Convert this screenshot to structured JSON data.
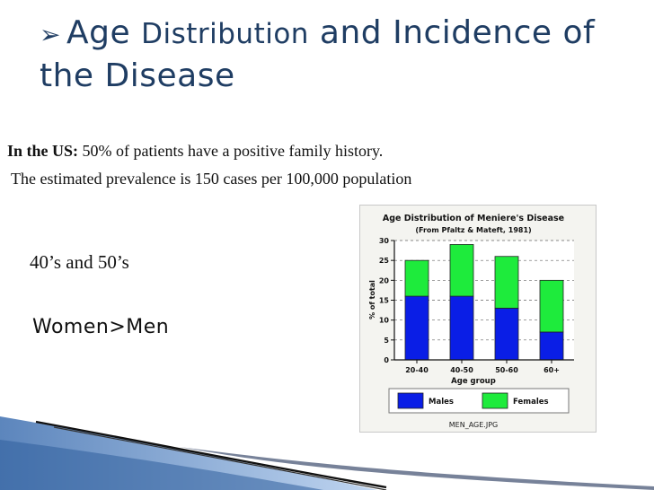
{
  "slide": {
    "title_bullet": "➢",
    "title_part1": "Age",
    "title_part2": "Distribution",
    "title_part3": "and Incidence of",
    "title_line2": "the Disease",
    "us_label": "In the US:",
    "us_text": " 50% of patients have a positive family history.",
    "prevalence_text": "The estimated prevalence is 150 cases per 100,000 population",
    "age_text": "40’s and 50’s",
    "gender_text": "Women>Men"
  },
  "colors": {
    "title": "#1f3d63",
    "males": "#0a1ee6",
    "females": "#1eeb3c"
  },
  "chart_data": {
    "type": "bar",
    "stacked": true,
    "title": "Age Distribution of Meniere's Disease",
    "subtitle": "(From Pfaltz & Mateft, 1981)",
    "xlabel": "Age group",
    "ylabel": "% of total",
    "categories": [
      "20-40",
      "40-50",
      "50-60",
      "60+"
    ],
    "series": [
      {
        "name": "Males",
        "values": [
          16,
          16,
          13,
          7
        ]
      },
      {
        "name": "Females",
        "values": [
          9,
          13,
          13,
          13
        ]
      }
    ],
    "ylim": [
      0,
      30
    ],
    "yticks": [
      0,
      5,
      10,
      15,
      20,
      25,
      30
    ],
    "grid": true,
    "legend": "bottom",
    "caption": "MEN_AGE.JPG"
  }
}
